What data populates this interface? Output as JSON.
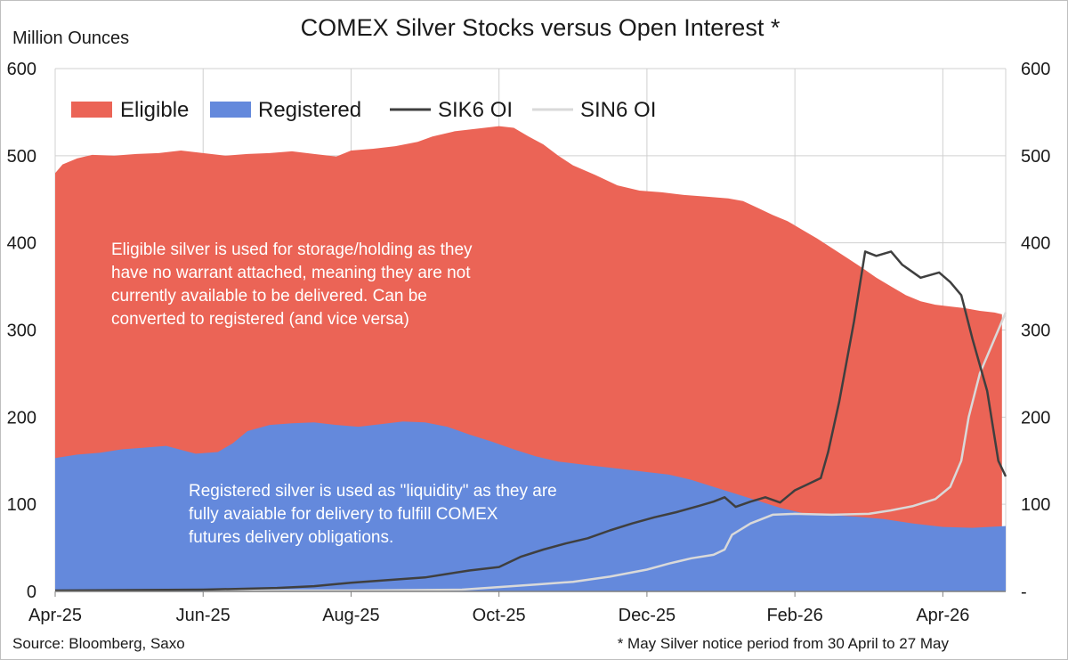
{
  "chart_data": {
    "type": "area",
    "title": "COMEX Silver Stocks versus Open Interest *",
    "ylabel": "Million Ounces",
    "ylim": [
      0,
      600
    ],
    "y_ticks_left": [
      "0",
      "100",
      "200",
      "300",
      "400",
      "500",
      "600"
    ],
    "y_ticks_right": [
      "-",
      "100",
      "200",
      "300",
      "400",
      "500",
      "600"
    ],
    "x_ticks": [
      "Apr-25",
      "Jun-25",
      "Aug-25",
      "Oct-25",
      "Dec-25",
      "Feb-26",
      "Apr-26"
    ],
    "x_tick_months": [
      0,
      2,
      4,
      6,
      8,
      10,
      12
    ],
    "x_range_months": [
      0,
      12.85
    ],
    "colors": {
      "eligible": "#eb6456",
      "registered": "#6489dc",
      "sik6": "#3f3f3f",
      "sin6": "#d9d9d9",
      "grid": "#d0d0d0"
    },
    "series": [
      {
        "name": "Eligible",
        "kind": "area_top_total",
        "points": [
          [
            0,
            480
          ],
          [
            0.1,
            490
          ],
          [
            0.3,
            497
          ],
          [
            0.5,
            501
          ],
          [
            0.8,
            500
          ],
          [
            1.1,
            502
          ],
          [
            1.4,
            503
          ],
          [
            1.7,
            506
          ],
          [
            2.0,
            503
          ],
          [
            2.3,
            500
          ],
          [
            2.6,
            502
          ],
          [
            2.9,
            503
          ],
          [
            3.2,
            505
          ],
          [
            3.5,
            502
          ],
          [
            3.8,
            499
          ],
          [
            4.0,
            506
          ],
          [
            4.3,
            508
          ],
          [
            4.6,
            511
          ],
          [
            4.9,
            516
          ],
          [
            5.1,
            522
          ],
          [
            5.4,
            528
          ],
          [
            5.7,
            531
          ],
          [
            6.0,
            534
          ],
          [
            6.2,
            532
          ],
          [
            6.4,
            522
          ],
          [
            6.6,
            513
          ],
          [
            6.8,
            500
          ],
          [
            7.0,
            489
          ],
          [
            7.3,
            478
          ],
          [
            7.6,
            466
          ],
          [
            7.9,
            460
          ],
          [
            8.2,
            458
          ],
          [
            8.5,
            455
          ],
          [
            8.8,
            453
          ],
          [
            9.1,
            451
          ],
          [
            9.3,
            448
          ],
          [
            9.5,
            440
          ],
          [
            9.7,
            432
          ],
          [
            9.9,
            425
          ],
          [
            10.1,
            415
          ],
          [
            10.3,
            405
          ],
          [
            10.5,
            394
          ],
          [
            10.7,
            383
          ],
          [
            10.9,
            372
          ],
          [
            11.1,
            360
          ],
          [
            11.3,
            350
          ],
          [
            11.5,
            340
          ],
          [
            11.7,
            333
          ],
          [
            11.9,
            329
          ],
          [
            12.1,
            327
          ],
          [
            12.3,
            325
          ],
          [
            12.5,
            322
          ],
          [
            12.7,
            320
          ],
          [
            12.8,
            318
          ]
        ]
      },
      {
        "name": "Registered",
        "kind": "area",
        "points": [
          [
            0,
            153
          ],
          [
            0.3,
            157
          ],
          [
            0.6,
            159
          ],
          [
            0.9,
            163
          ],
          [
            1.2,
            165
          ],
          [
            1.5,
            167
          ],
          [
            1.9,
            158
          ],
          [
            2.2,
            160
          ],
          [
            2.4,
            170
          ],
          [
            2.6,
            184
          ],
          [
            2.9,
            191
          ],
          [
            3.2,
            193
          ],
          [
            3.5,
            194
          ],
          [
            3.8,
            191
          ],
          [
            4.1,
            189
          ],
          [
            4.4,
            192
          ],
          [
            4.7,
            195
          ],
          [
            5.0,
            194
          ],
          [
            5.3,
            189
          ],
          [
            5.6,
            180
          ],
          [
            5.9,
            172
          ],
          [
            6.2,
            163
          ],
          [
            6.5,
            155
          ],
          [
            6.8,
            149
          ],
          [
            7.1,
            146
          ],
          [
            7.4,
            143
          ],
          [
            7.7,
            140
          ],
          [
            8.0,
            137
          ],
          [
            8.3,
            134
          ],
          [
            8.6,
            128
          ],
          [
            8.9,
            120
          ],
          [
            9.2,
            112
          ],
          [
            9.5,
            104
          ],
          [
            9.8,
            96
          ],
          [
            10.1,
            90
          ],
          [
            10.4,
            88
          ],
          [
            10.8,
            86
          ],
          [
            11.2,
            83
          ],
          [
            11.6,
            78
          ],
          [
            12.0,
            74
          ],
          [
            12.4,
            73
          ],
          [
            12.85,
            75
          ]
        ]
      },
      {
        "name": "SIK6 OI",
        "kind": "line",
        "points": [
          [
            0,
            1
          ],
          [
            2.0,
            2
          ],
          [
            2.5,
            3
          ],
          [
            3.0,
            4
          ],
          [
            3.5,
            6
          ],
          [
            4.0,
            10
          ],
          [
            4.5,
            13
          ],
          [
            5.0,
            16
          ],
          [
            5.3,
            20
          ],
          [
            5.6,
            24
          ],
          [
            6.0,
            28
          ],
          [
            6.3,
            40
          ],
          [
            6.6,
            48
          ],
          [
            6.9,
            55
          ],
          [
            7.2,
            61
          ],
          [
            7.5,
            70
          ],
          [
            7.8,
            78
          ],
          [
            8.1,
            85
          ],
          [
            8.4,
            91
          ],
          [
            8.7,
            98
          ],
          [
            8.9,
            103
          ],
          [
            9.05,
            108
          ],
          [
            9.2,
            97
          ],
          [
            9.4,
            103
          ],
          [
            9.6,
            108
          ],
          [
            9.8,
            102
          ],
          [
            10.0,
            116
          ],
          [
            10.15,
            122
          ],
          [
            10.35,
            130
          ],
          [
            10.45,
            160
          ],
          [
            10.6,
            218
          ],
          [
            10.8,
            310
          ],
          [
            10.95,
            390
          ],
          [
            11.1,
            385
          ],
          [
            11.3,
            390
          ],
          [
            11.45,
            375
          ],
          [
            11.7,
            360
          ],
          [
            11.95,
            366
          ],
          [
            12.1,
            355
          ],
          [
            12.25,
            340
          ],
          [
            12.4,
            290
          ],
          [
            12.6,
            230
          ],
          [
            12.75,
            150
          ],
          [
            12.85,
            132
          ]
        ]
      },
      {
        "name": "SIN6 OI",
        "kind": "line",
        "points": [
          [
            2.0,
            1
          ],
          [
            4.0,
            1
          ],
          [
            5.5,
            2
          ],
          [
            6.0,
            5
          ],
          [
            6.5,
            8
          ],
          [
            7.0,
            11
          ],
          [
            7.5,
            17
          ],
          [
            8.0,
            25
          ],
          [
            8.3,
            32
          ],
          [
            8.6,
            38
          ],
          [
            8.9,
            42
          ],
          [
            9.05,
            48
          ],
          [
            9.15,
            65
          ],
          [
            9.4,
            78
          ],
          [
            9.7,
            88
          ],
          [
            10.0,
            89
          ],
          [
            10.5,
            88
          ],
          [
            11.0,
            89
          ],
          [
            11.3,
            93
          ],
          [
            11.6,
            98
          ],
          [
            11.9,
            106
          ],
          [
            12.1,
            120
          ],
          [
            12.25,
            150
          ],
          [
            12.35,
            200
          ],
          [
            12.5,
            250
          ],
          [
            12.7,
            290
          ],
          [
            12.85,
            320
          ]
        ]
      }
    ],
    "annotations": [
      {
        "id": "eligible_note",
        "lines": [
          "Eligible silver is used for storage/holding as they",
          "have no warrant attached, meaning they are not",
          "currently available to be delivered. Can be",
          "converted to registered (and vice versa)"
        ]
      },
      {
        "id": "registered_note",
        "lines": [
          "Registered silver is used as \"liquidity\" as they are",
          "fully avaiable for delivery to fulfill COMEX",
          "futures delivery obligations."
        ]
      }
    ],
    "legend_position": "top-left",
    "source": "Source: Bloomberg, Saxo",
    "footnote": "* May Silver notice period from 30 April to 27 May"
  }
}
